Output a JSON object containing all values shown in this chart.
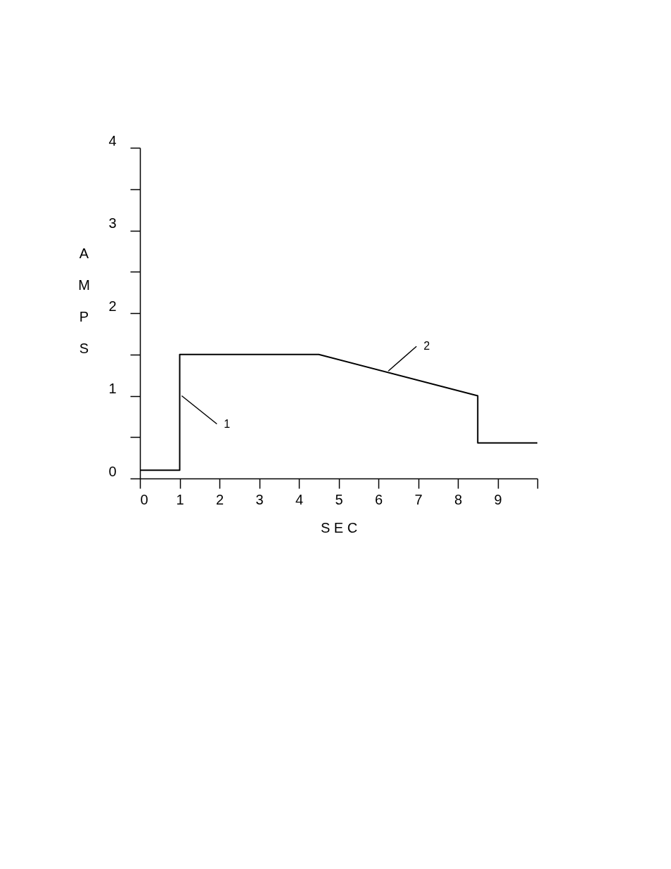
{
  "chart_data": {
    "type": "line",
    "xlabel": "S E C",
    "ylabel": "AMPS",
    "x": [
      0,
      1,
      1,
      4.5,
      8.5,
      8.5,
      10
    ],
    "series": [
      {
        "color": "#000000",
        "values": [
          0.1,
          0.1,
          1.5,
          1.5,
          1.0,
          0.43,
          0.43
        ]
      }
    ],
    "xlim": [
      0,
      10
    ],
    "ylim": [
      0,
      4
    ],
    "xticks": [
      0,
      1,
      2,
      3,
      4,
      5,
      6,
      7,
      8,
      9,
      {
        "value": 10,
        "label": null
      }
    ],
    "yticks": [
      0,
      {
        "value": 0.5,
        "label": null
      },
      1,
      {
        "value": 1.5,
        "label": null
      },
      2,
      {
        "value": 2.5,
        "label": null
      },
      3,
      {
        "value": 3.5,
        "label": null
      },
      4
    ],
    "annotations": [
      {
        "text": "1",
        "x": 1.05,
        "y": 1.0
      },
      {
        "text": "2",
        "x": 6.25,
        "y": 1.3
      }
    ],
    "grid": false,
    "marker": "none",
    "line_style": "solid"
  }
}
